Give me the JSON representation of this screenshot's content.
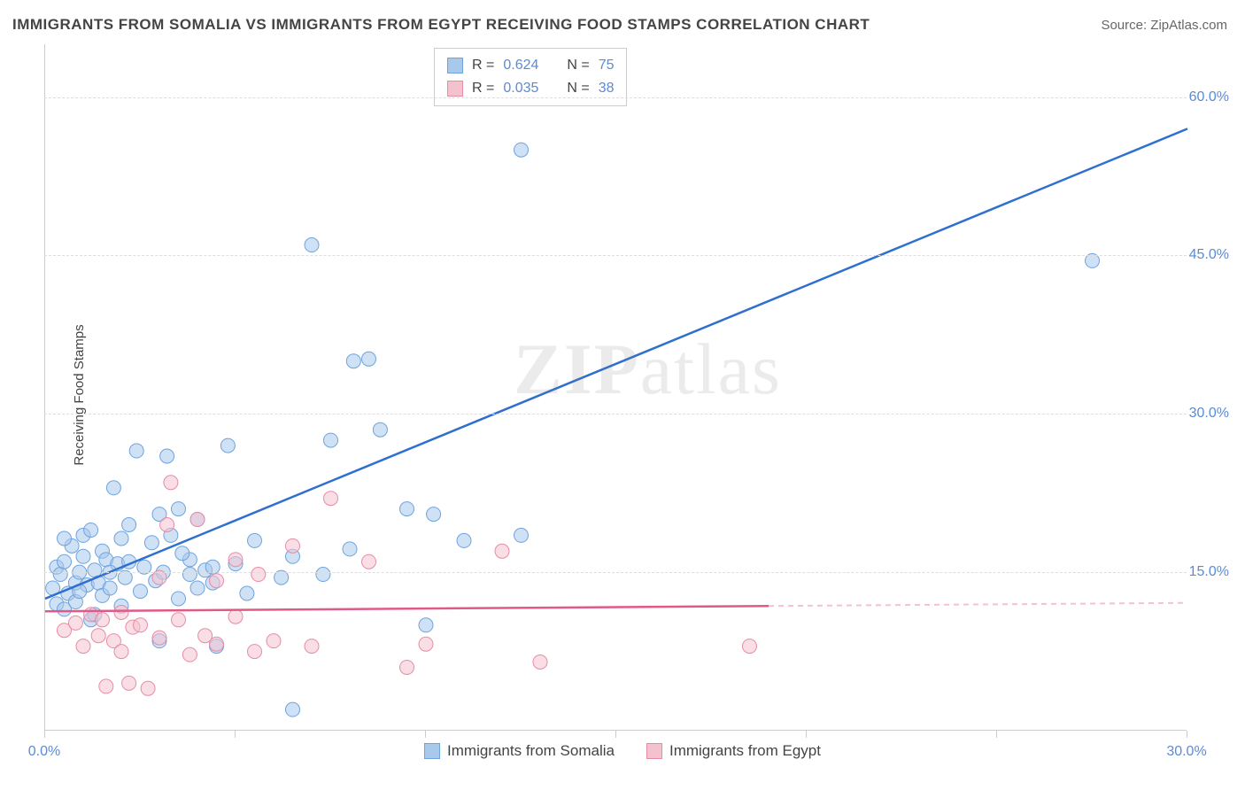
{
  "title": "IMMIGRANTS FROM SOMALIA VS IMMIGRANTS FROM EGYPT RECEIVING FOOD STAMPS CORRELATION CHART",
  "source": "Source: ZipAtlas.com",
  "y_axis_label": "Receiving Food Stamps",
  "watermark_bold": "ZIP",
  "watermark_rest": "atlas",
  "chart": {
    "type": "scatter-with-regression",
    "background_color": "#ffffff",
    "grid_color": "#dddddd",
    "axis_color": "#cccccc",
    "tick_label_color": "#5b8bd4",
    "text_color": "#444444",
    "xlim": [
      0,
      30
    ],
    "ylim": [
      0,
      65
    ],
    "x_ticks": [
      0,
      5,
      10,
      15,
      20,
      25,
      30
    ],
    "x_tick_labels": {
      "0": "0.0%",
      "30": "30.0%"
    },
    "y_ticks": [
      15,
      30,
      45,
      60
    ],
    "y_tick_labels": {
      "15": "15.0%",
      "30": "30.0%",
      "45": "45.0%",
      "60": "60.0%"
    },
    "marker_radius": 8,
    "marker_opacity": 0.55,
    "line_width": 2.5,
    "series": [
      {
        "name": "Immigrants from Somalia",
        "color_fill": "#a8c8ec",
        "color_stroke": "#6fa3dd",
        "line_color": "#2f6fd0",
        "R": "0.624",
        "N": "75",
        "regression": {
          "x1": 0,
          "y1": 12.5,
          "x2": 30,
          "y2": 57,
          "dashed_from_x": null
        },
        "points": [
          [
            0.2,
            13.5
          ],
          [
            0.3,
            15.5
          ],
          [
            0.3,
            12
          ],
          [
            0.4,
            14.8
          ],
          [
            0.5,
            16
          ],
          [
            0.5,
            11.5
          ],
          [
            0.6,
            13
          ],
          [
            0.7,
            17.5
          ],
          [
            0.8,
            14
          ],
          [
            0.8,
            12.2
          ],
          [
            0.9,
            15
          ],
          [
            1.0,
            16.5
          ],
          [
            1.0,
            18.5
          ],
          [
            1.1,
            13.8
          ],
          [
            1.2,
            10.5
          ],
          [
            1.2,
            19
          ],
          [
            1.3,
            15.2
          ],
          [
            1.4,
            14
          ],
          [
            1.5,
            17
          ],
          [
            1.5,
            12.8
          ],
          [
            1.6,
            16.2
          ],
          [
            1.7,
            13.5
          ],
          [
            1.8,
            23
          ],
          [
            1.9,
            15.8
          ],
          [
            2.0,
            18.2
          ],
          [
            2.0,
            11.8
          ],
          [
            2.1,
            14.5
          ],
          [
            2.2,
            16
          ],
          [
            2.4,
            26.5
          ],
          [
            2.5,
            13.2
          ],
          [
            2.6,
            15.5
          ],
          [
            2.8,
            17.8
          ],
          [
            2.9,
            14.2
          ],
          [
            3.0,
            20.5
          ],
          [
            3.0,
            8.5
          ],
          [
            3.1,
            15
          ],
          [
            3.2,
            26
          ],
          [
            3.3,
            18.5
          ],
          [
            3.5,
            12.5
          ],
          [
            3.5,
            21
          ],
          [
            3.8,
            14.8
          ],
          [
            3.8,
            16.2
          ],
          [
            4.0,
            13.5
          ],
          [
            4.0,
            20
          ],
          [
            4.2,
            15.2
          ],
          [
            4.4,
            14
          ],
          [
            4.4,
            15.5
          ],
          [
            4.5,
            8
          ],
          [
            4.8,
            27
          ],
          [
            5.0,
            15.8
          ],
          [
            5.3,
            13
          ],
          [
            5.5,
            18
          ],
          [
            6.2,
            14.5
          ],
          [
            6.5,
            16.5
          ],
          [
            6.5,
            2
          ],
          [
            7.0,
            46
          ],
          [
            7.3,
            14.8
          ],
          [
            7.5,
            27.5
          ],
          [
            8.0,
            17.2
          ],
          [
            8.1,
            35
          ],
          [
            8.5,
            35.2
          ],
          [
            8.8,
            28.5
          ],
          [
            9.5,
            21
          ],
          [
            10.0,
            10
          ],
          [
            10.2,
            20.5
          ],
          [
            11.0,
            18
          ],
          [
            12.5,
            55
          ],
          [
            12.5,
            18.5
          ],
          [
            27.5,
            44.5
          ],
          [
            0.5,
            18.2
          ],
          [
            1.3,
            11
          ],
          [
            2.2,
            19.5
          ],
          [
            3.6,
            16.8
          ],
          [
            0.9,
            13.2
          ],
          [
            1.7,
            15
          ]
        ]
      },
      {
        "name": "Immigrants from Egypt",
        "color_fill": "#f4c2cf",
        "color_stroke": "#e88ba5",
        "line_color": "#e05a87",
        "R": "0.035",
        "N": "38",
        "regression": {
          "x1": 0,
          "y1": 11.3,
          "x2": 30,
          "y2": 12.1,
          "dashed_from_x": 19
        },
        "points": [
          [
            0.5,
            9.5
          ],
          [
            0.8,
            10.2
          ],
          [
            1.0,
            8
          ],
          [
            1.2,
            11
          ],
          [
            1.4,
            9
          ],
          [
            1.5,
            10.5
          ],
          [
            1.6,
            4.2
          ],
          [
            1.8,
            8.5
          ],
          [
            2.0,
            11.2
          ],
          [
            2.0,
            7.5
          ],
          [
            2.2,
            4.5
          ],
          [
            2.3,
            9.8
          ],
          [
            2.5,
            10
          ],
          [
            2.7,
            4
          ],
          [
            3.0,
            8.8
          ],
          [
            3.0,
            14.5
          ],
          [
            3.2,
            19.5
          ],
          [
            3.3,
            23.5
          ],
          [
            3.5,
            10.5
          ],
          [
            3.8,
            7.2
          ],
          [
            4.0,
            20
          ],
          [
            4.2,
            9
          ],
          [
            4.5,
            8.2
          ],
          [
            4.5,
            14.2
          ],
          [
            5.0,
            10.8
          ],
          [
            5.0,
            16.2
          ],
          [
            5.5,
            7.5
          ],
          [
            5.6,
            14.8
          ],
          [
            6.0,
            8.5
          ],
          [
            6.5,
            17.5
          ],
          [
            7.0,
            8
          ],
          [
            7.5,
            22
          ],
          [
            8.5,
            16
          ],
          [
            9.5,
            6
          ],
          [
            10.0,
            8.2
          ],
          [
            12.0,
            17
          ],
          [
            13.0,
            6.5
          ],
          [
            18.5,
            8
          ]
        ]
      }
    ]
  },
  "legend_top": {
    "rows": [
      {
        "swatch_fill": "#a8c8ec",
        "swatch_stroke": "#6fa3dd",
        "R": "0.624",
        "N": "75"
      },
      {
        "swatch_fill": "#f4c2cf",
        "swatch_stroke": "#e88ba5",
        "R": "0.035",
        "N": "38"
      }
    ],
    "r_label": "R =",
    "n_label": "N ="
  },
  "legend_bottom": {
    "items": [
      {
        "swatch_fill": "#a8c8ec",
        "swatch_stroke": "#6fa3dd",
        "label": "Immigrants from Somalia"
      },
      {
        "swatch_fill": "#f4c2cf",
        "swatch_stroke": "#e88ba5",
        "label": "Immigrants from Egypt"
      }
    ]
  }
}
